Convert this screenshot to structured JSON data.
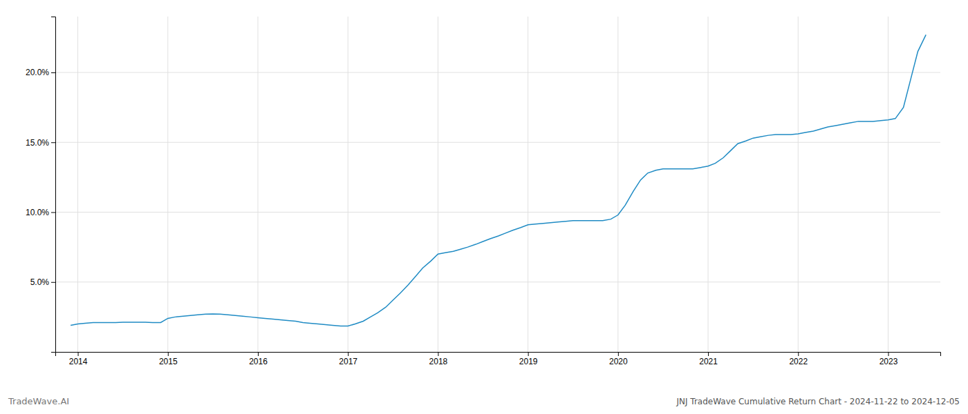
{
  "chart_data": {
    "type": "line",
    "title": "JNJ TradeWave Cumulative Return Chart - 2024-11-22 to 2024-12-05",
    "annotations": [
      "TradeWave.AI"
    ],
    "color": "#1f8bc4",
    "grid": true,
    "x": [
      2013.92,
      2014.0,
      2014.08,
      2014.17,
      2014.25,
      2014.33,
      2014.42,
      2014.5,
      2014.58,
      2014.67,
      2014.75,
      2014.83,
      2014.92,
      2015.0,
      2015.08,
      2015.17,
      2015.25,
      2015.33,
      2015.42,
      2015.5,
      2015.58,
      2015.67,
      2015.75,
      2015.83,
      2015.92,
      2016.0,
      2016.08,
      2016.17,
      2016.25,
      2016.33,
      2016.42,
      2016.5,
      2016.58,
      2016.67,
      2016.75,
      2016.83,
      2016.92,
      2017.0,
      2017.08,
      2017.17,
      2017.25,
      2017.33,
      2017.42,
      2017.5,
      2017.58,
      2017.67,
      2017.75,
      2017.83,
      2017.92,
      2018.0,
      2018.08,
      2018.17,
      2018.25,
      2018.33,
      2018.42,
      2018.5,
      2018.58,
      2018.67,
      2018.75,
      2018.83,
      2018.92,
      2019.0,
      2019.08,
      2019.17,
      2019.25,
      2019.33,
      2019.42,
      2019.5,
      2019.58,
      2019.67,
      2019.75,
      2019.83,
      2019.92,
      2020.0,
      2020.08,
      2020.17,
      2020.25,
      2020.33,
      2020.42,
      2020.5,
      2020.58,
      2020.67,
      2020.75,
      2020.83,
      2020.92,
      2021.0,
      2021.08,
      2021.17,
      2021.25,
      2021.33,
      2021.42,
      2021.5,
      2021.58,
      2021.67,
      2021.75,
      2021.83,
      2021.92,
      2022.0,
      2022.08,
      2022.17,
      2022.25,
      2022.33,
      2022.42,
      2022.5,
      2022.58,
      2022.67,
      2022.75,
      2022.83,
      2022.92,
      2023.0,
      2023.08,
      2023.17,
      2023.25,
      2023.33,
      2023.42
    ],
    "values": [
      1.9,
      2.0,
      2.05,
      2.1,
      2.1,
      2.1,
      2.1,
      2.12,
      2.12,
      2.12,
      2.12,
      2.1,
      2.1,
      2.4,
      2.5,
      2.55,
      2.6,
      2.65,
      2.7,
      2.72,
      2.7,
      2.65,
      2.6,
      2.55,
      2.5,
      2.45,
      2.4,
      2.35,
      2.3,
      2.25,
      2.2,
      2.1,
      2.05,
      2.0,
      1.95,
      1.9,
      1.85,
      1.85,
      2.0,
      2.2,
      2.5,
      2.8,
      3.2,
      3.7,
      4.2,
      4.8,
      5.4,
      6.0,
      6.5,
      7.0,
      7.1,
      7.2,
      7.35,
      7.5,
      7.7,
      7.9,
      8.1,
      8.3,
      8.5,
      8.7,
      8.9,
      9.1,
      9.15,
      9.2,
      9.25,
      9.3,
      9.35,
      9.4,
      9.4,
      9.4,
      9.4,
      9.4,
      9.5,
      9.8,
      10.5,
      11.5,
      12.3,
      12.8,
      13.0,
      13.1,
      13.1,
      13.1,
      13.1,
      13.1,
      13.2,
      13.3,
      13.5,
      13.9,
      14.4,
      14.9,
      15.1,
      15.3,
      15.4,
      15.5,
      15.55,
      15.55,
      15.55,
      15.6,
      15.7,
      15.8,
      15.95,
      16.1,
      16.2,
      16.3,
      16.4,
      16.5,
      16.5,
      16.5,
      16.55,
      16.6,
      16.7,
      17.5,
      19.5,
      21.5,
      22.7
    ],
    "xlim": [
      2013.75,
      2023.58
    ],
    "xticks": [
      2014,
      2015,
      2016,
      2017,
      2018,
      2019,
      2020,
      2021,
      2022,
      2023
    ],
    "ylim": [
      0,
      24
    ],
    "yticks": [
      {
        "value": 5.0,
        "label": "5.0%"
      },
      {
        "value": 10.0,
        "label": "10.0%"
      },
      {
        "value": 15.0,
        "label": "15.0%"
      },
      {
        "value": 20.0,
        "label": "20.0%"
      }
    ]
  }
}
